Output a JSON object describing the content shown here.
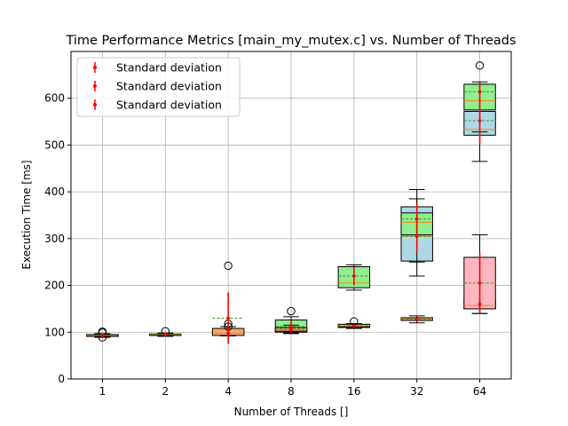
{
  "chart_data": {
    "type": "box",
    "title": "Time Performance Metrics [main_my_mutex.c] vs. Number of Threads",
    "xlabel": "Number of Threads []",
    "ylabel": "Execution Time [ms]",
    "categories": [
      "1",
      "2",
      "4",
      "8",
      "16",
      "32",
      "64"
    ],
    "ylim": [
      0,
      700
    ],
    "yticks": [
      0,
      100,
      200,
      300,
      400,
      500,
      600
    ],
    "grid": true,
    "legend_position": "top-left",
    "legend": [
      "Standard deviation",
      "Standard deviation",
      "Standard deviation"
    ],
    "series": [
      {
        "color": "#add8e6",
        "boxes": [
          {
            "whislo": 89,
            "q1": 91,
            "med": 92,
            "q3": 94,
            "whishi": 95,
            "mean": 93,
            "fliers": [
              89,
              99
            ],
            "std": 2
          },
          {
            "whislo": 92,
            "q1": 93,
            "med": 94,
            "q3": 96,
            "whishi": 98,
            "mean": 95,
            "fliers": [
              102
            ],
            "std": 2
          },
          {
            "whislo": 92,
            "q1": 94,
            "med": 96,
            "q3": 99,
            "whishi": 103,
            "mean": 98,
            "fliers": [],
            "std": 3
          },
          {
            "whislo": 98,
            "q1": 101,
            "med": 103,
            "q3": 110,
            "whishi": 116,
            "mean": 105,
            "fliers": [],
            "std": 4
          },
          {
            "whislo": 108,
            "q1": 110,
            "med": 112,
            "q3": 116,
            "whishi": 118,
            "mean": 113,
            "fliers": [],
            "std": 3
          },
          {
            "whislo": 250,
            "q1": 252,
            "med": 305,
            "q3": 368,
            "whishi": 405,
            "mean": 305,
            "fliers": [],
            "std": 35
          },
          {
            "whislo": 465,
            "q1": 521,
            "med": 533,
            "q3": 572,
            "whishi": 630,
            "mean": 552,
            "fliers": [],
            "std": 50
          }
        ]
      },
      {
        "color": "#90ee90",
        "boxes": [
          {
            "whislo": 90,
            "q1": 91,
            "med": 92,
            "q3": 94,
            "whishi": 96,
            "mean": 93,
            "fliers": [
              101
            ],
            "std": 2
          },
          {
            "whislo": 91,
            "q1": 93,
            "med": 94,
            "q3": 96,
            "whishi": 98,
            "mean": 95,
            "fliers": [],
            "std": 2
          },
          {
            "whislo": 93,
            "q1": 95,
            "med": 97,
            "q3": 100,
            "whishi": 102,
            "mean": 98,
            "fliers": [],
            "std": 3
          },
          {
            "whislo": 97,
            "q1": 100,
            "med": 110,
            "q3": 126,
            "whishi": 133,
            "mean": 112,
            "fliers": [
              145
            ],
            "std": 13
          },
          {
            "whislo": 190,
            "q1": 195,
            "med": 205,
            "q3": 240,
            "whishi": 244,
            "mean": 220,
            "fliers": [],
            "std": 20
          },
          {
            "whislo": 220,
            "q1": 308,
            "med": 335,
            "q3": 355,
            "whishi": 385,
            "mean": 342,
            "fliers": [],
            "std": 35
          },
          {
            "whislo": 528,
            "q1": 575,
            "med": 595,
            "q3": 630,
            "whishi": 635,
            "mean": 614,
            "fliers": [
              670
            ],
            "std": 20
          }
        ]
      },
      {
        "color": "#f6aa70",
        "boxes": [
          {
            "whislo": 90,
            "q1": 92,
            "med": 93,
            "q3": 95,
            "whishi": 97,
            "mean": 94,
            "fliers": [],
            "std": 2
          },
          {
            "whislo": 92,
            "q1": 93,
            "med": 95,
            "q3": 96,
            "whishi": 97,
            "mean": 95,
            "fliers": [],
            "std": 2
          },
          {
            "whislo": 92,
            "q1": 93,
            "med": 98,
            "q3": 108,
            "whishi": 112,
            "mean": 130,
            "fliers": [
              242,
              118,
              112
            ],
            "std": 55
          },
          {
            "whislo": 100,
            "q1": 102,
            "med": 105,
            "q3": 110,
            "whishi": 115,
            "mean": 107,
            "fliers": [],
            "std": 5
          },
          {
            "whislo": 110,
            "q1": 112,
            "med": 113,
            "q3": 117,
            "whishi": 118,
            "mean": 114,
            "fliers": [
              123
            ],
            "std": 2
          },
          {
            "whislo": 120,
            "q1": 125,
            "med": 128,
            "q3": 131,
            "whishi": 135,
            "mean": 128,
            "fliers": [],
            "std": 3
          },
          {
            "whislo": 140,
            "q1": 150,
            "med": 155,
            "q3": 170,
            "whishi": 180,
            "mean": 160,
            "fliers": [],
            "std": 10
          }
        ]
      },
      {
        "color": "#ffb6c1",
        "boxes": [
          null,
          null,
          null,
          null,
          null,
          null,
          {
            "whislo": 140,
            "q1": 150,
            "med": 157,
            "q3": 260,
            "whishi": 308,
            "mean": 205,
            "fliers": [],
            "std": 65
          }
        ]
      }
    ]
  }
}
